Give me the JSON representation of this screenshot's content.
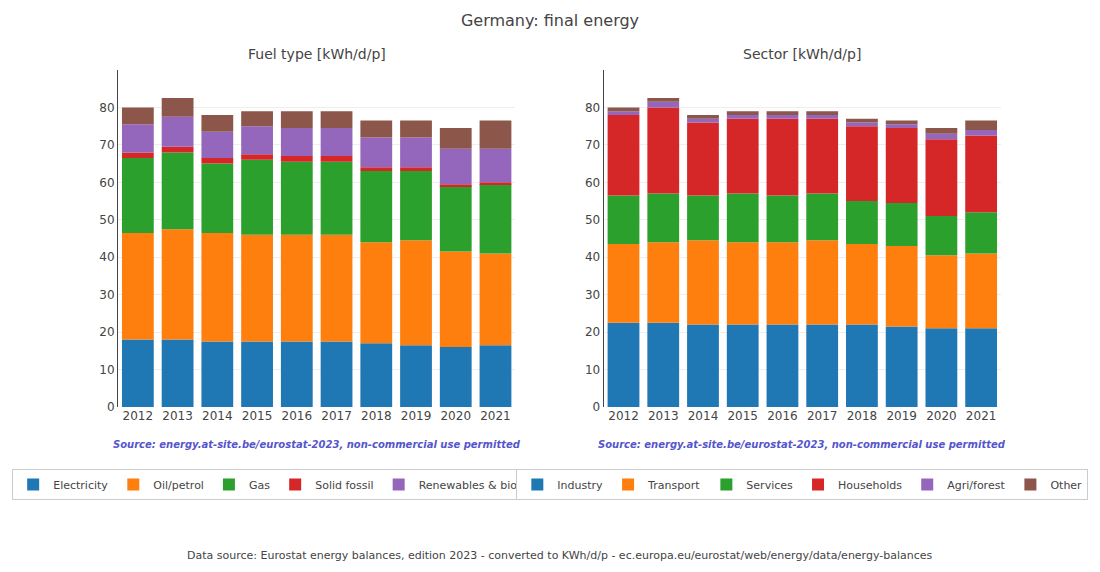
{
  "title": "Germany: final energy",
  "annotations": [
    {
      "text": "Data source: Eurostat energy balances, edition 2023 - converted to KWh/d/p - ec.europa.eu/eurostat/web/energy/data/energy-balances"
    }
  ],
  "chart_data": [
    {
      "type": "bar",
      "title": "Fuel type [kWh/d/p]",
      "stacked": true,
      "grid": true,
      "legend": "bottom",
      "categories": [
        "2012",
        "2013",
        "2014",
        "2015",
        "2016",
        "2017",
        "2018",
        "2019",
        "2020",
        "2021"
      ],
      "series": [
        {
          "name": "Electricity",
          "color": "#1f77b4",
          "values": [
            18.0,
            18.0,
            17.5,
            17.5,
            17.5,
            17.5,
            17.0,
            16.5,
            16.0,
            16.5
          ]
        },
        {
          "name": "Oil/petrol",
          "color": "#ff7f0e",
          "values": [
            28.5,
            29.5,
            29.0,
            28.5,
            28.5,
            28.5,
            27.0,
            28.0,
            25.5,
            24.5
          ]
        },
        {
          "name": "Gas",
          "color": "#2ca02c",
          "values": [
            20.0,
            20.5,
            18.5,
            20.0,
            19.5,
            19.5,
            19.0,
            18.5,
            17.5,
            18.5
          ]
        },
        {
          "name": "Solid fossil",
          "color": "#d62728",
          "values": [
            1.5,
            1.5,
            1.5,
            1.5,
            1.5,
            1.5,
            1.0,
            1.0,
            0.5,
            0.5
          ]
        },
        {
          "name": "Renewables & biofuel",
          "color": "#9467bd",
          "values": [
            7.5,
            8.0,
            7.0,
            7.5,
            7.5,
            7.5,
            8.0,
            8.0,
            9.5,
            9.0
          ]
        },
        {
          "name": "Other",
          "color": "#8c564b",
          "values": [
            4.5,
            5.0,
            4.5,
            4.0,
            4.5,
            4.5,
            4.5,
            4.5,
            5.5,
            7.5
          ]
        }
      ],
      "ylim": [
        0,
        90
      ],
      "yticks": [
        0,
        10,
        20,
        30,
        40,
        50,
        60,
        70,
        80
      ],
      "annotations": [
        {
          "text": "Source: energy.at-site.be/eurostat-2023, non-commercial use permitted",
          "color": "#5555cc"
        }
      ]
    },
    {
      "type": "bar",
      "title": "Sector [kWh/d/p]",
      "stacked": true,
      "grid": true,
      "legend": "bottom",
      "categories": [
        "2012",
        "2013",
        "2014",
        "2015",
        "2016",
        "2017",
        "2018",
        "2019",
        "2020",
        "2021"
      ],
      "series": [
        {
          "name": "Industry",
          "color": "#1f77b4",
          "values": [
            22.5,
            22.5,
            22.0,
            22.0,
            22.0,
            22.0,
            22.0,
            21.5,
            21.0,
            21.0
          ]
        },
        {
          "name": "Transport",
          "color": "#ff7f0e",
          "values": [
            21.0,
            21.5,
            22.5,
            22.0,
            22.0,
            22.5,
            21.5,
            21.5,
            19.5,
            20.0
          ]
        },
        {
          "name": "Services",
          "color": "#2ca02c",
          "values": [
            13.0,
            13.0,
            12.0,
            13.0,
            12.5,
            12.5,
            11.5,
            11.5,
            10.5,
            11.0
          ]
        },
        {
          "name": "Households",
          "color": "#d62728",
          "values": [
            21.5,
            23.0,
            19.5,
            20.0,
            20.5,
            20.0,
            20.0,
            20.0,
            20.5,
            20.5
          ]
        },
        {
          "name": "Agri/forest",
          "color": "#9467bd",
          "values": [
            1.0,
            1.5,
            1.0,
            1.0,
            1.0,
            1.0,
            1.0,
            1.0,
            1.5,
            1.5
          ]
        },
        {
          "name": "Other",
          "color": "#8c564b",
          "values": [
            1.0,
            1.0,
            1.0,
            1.0,
            1.0,
            1.0,
            1.0,
            1.0,
            1.5,
            2.5
          ]
        }
      ],
      "ylim": [
        0,
        90
      ],
      "yticks": [
        0,
        10,
        20,
        30,
        40,
        50,
        60,
        70,
        80
      ],
      "annotations": [
        {
          "text": "Source: energy.at-site.be/eurostat-2023, non-commercial use permitted",
          "color": "#5555cc"
        }
      ]
    }
  ]
}
